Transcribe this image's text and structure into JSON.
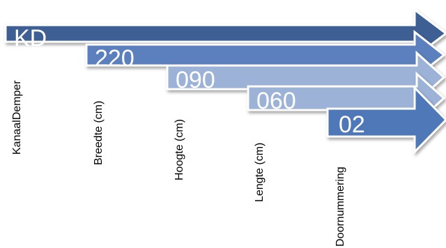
{
  "segments": [
    {
      "code": "KD",
      "label": "KanaalDemper",
      "color": "#3c5f93"
    },
    {
      "code": "220",
      "label": "Breedte (cm)",
      "color": "#5b80bd"
    },
    {
      "code": "090",
      "label": "Hoogte (cm)",
      "color": "#9cb2d6"
    },
    {
      "code": "060",
      "label": "Lengte (cm)",
      "color": "#9cb2d6"
    },
    {
      "code": "02",
      "label": "Doornummering",
      "color": "#5078b8"
    }
  ]
}
